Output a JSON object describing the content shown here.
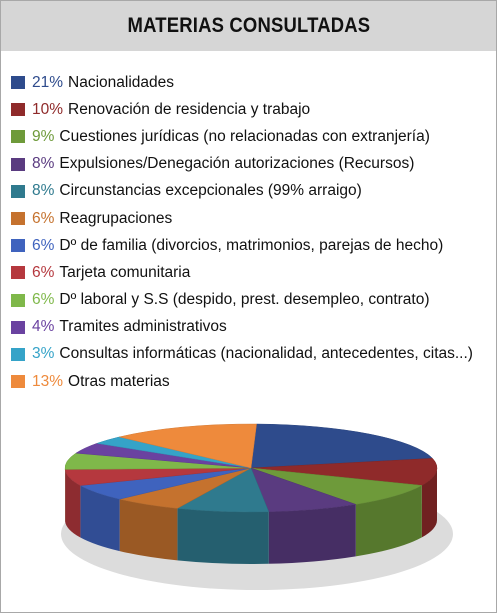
{
  "chart_data": {
    "type": "pie",
    "title": "MATERIAS CONSULTADAS",
    "slices": [
      {
        "percent_label": "21%",
        "label": "Nacionalidades",
        "value": 21,
        "color": "#2e4b8c"
      },
      {
        "percent_label": "10%",
        "label": "Renovación de residencia y trabajo",
        "value": 10,
        "color": "#8f2a2a"
      },
      {
        "percent_label": "9%",
        "label": "Cuestiones jurídicas (no relacionadas con extranjería)",
        "value": 9,
        "color": "#6e9a3a"
      },
      {
        "percent_label": "8%",
        "label": "Expulsiones/Denegación autorizaciones (Recursos)",
        "value": 8,
        "color": "#5a3b80"
      },
      {
        "percent_label": "8%",
        "label": "Circunstancias excepcionales (99% arraigo)",
        "value": 8,
        "color": "#2f7a8e"
      },
      {
        "percent_label": "6%",
        "label": "Reagrupaciones",
        "value": 6,
        "color": "#c5722e"
      },
      {
        "percent_label": "6%",
        "label": "Dº de familia (divorcios, matrimonios, parejas de hecho)",
        "value": 6,
        "color": "#3f63be"
      },
      {
        "percent_label": "6%",
        "label": "Tarjeta comunitaria",
        "value": 6,
        "color": "#b5383e"
      },
      {
        "percent_label": "6%",
        "label": "Dº laboral y S.S (despido, prest. desempleo, contrato)",
        "value": 6,
        "color": "#7fb84a"
      },
      {
        "percent_label": "4%",
        "label": "Tramites administrativos",
        "value": 4,
        "color": "#6a42a0"
      },
      {
        "percent_label": "3%",
        "label": "Consultas informáticas (nacionalidad, antecedentes, citas...)",
        "value": 3,
        "color": "#35a3c8"
      },
      {
        "percent_label": "13%",
        "label": "Otras materias",
        "value": 13,
        "color": "#ee8a3c"
      }
    ],
    "legend_position": "top"
  }
}
